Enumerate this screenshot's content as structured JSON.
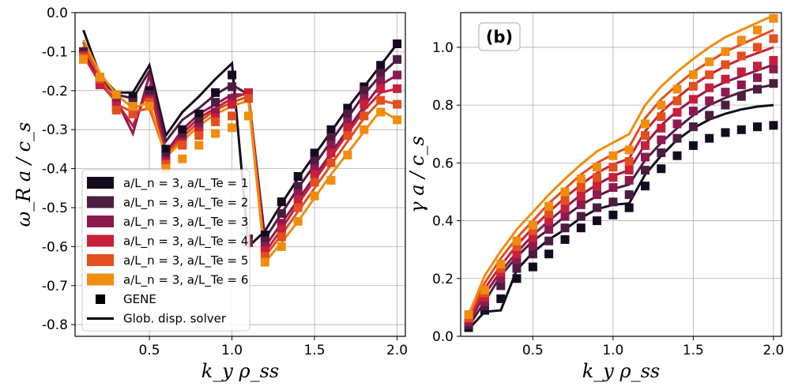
{
  "chart_data": [
    {
      "panel": "left",
      "type": "line",
      "ylabel": "ω_R a / c_s",
      "xlabel": "k_y ρ_ss",
      "xlim": [
        0.05,
        2.05
      ],
      "ylim": [
        -0.83,
        0.0
      ],
      "xticks": [
        "0.5",
        "1.0",
        "1.5",
        "2.0"
      ],
      "yticks": [
        "0.0",
        "-0.1",
        "-0.2",
        "-0.3",
        "-0.4",
        "-0.5",
        "-0.6",
        "-0.7",
        "-0.8"
      ],
      "grid": true,
      "x": [
        0.1,
        0.2,
        0.3,
        0.4,
        0.5,
        0.6,
        0.7,
        0.8,
        0.9,
        1.0,
        1.1,
        1.2,
        1.3,
        1.4,
        1.5,
        1.6,
        1.7,
        1.8,
        1.9,
        2.0
      ],
      "series": [
        {
          "name": "a/L_n = 3, a/L_Te = 1",
          "color": "#140b1e",
          "gene": [
            -0.105,
            -0.17,
            -0.22,
            -0.215,
            -0.2,
            -0.35,
            -0.3,
            -0.26,
            -0.205,
            -0.16,
            -0.58,
            -0.57,
            -0.485,
            -0.42,
            -0.36,
            -0.3,
            -0.245,
            -0.19,
            -0.135,
            -0.08
          ],
          "solver": [
            -0.045,
            -0.16,
            -0.205,
            -0.205,
            -0.135,
            -0.315,
            -0.255,
            -0.215,
            -0.17,
            -0.13,
            -0.6,
            -0.56,
            -0.49,
            -0.425,
            -0.365,
            -0.305,
            -0.245,
            -0.19,
            -0.135,
            -0.08
          ]
        },
        {
          "name": "a/L_n = 3, a/L_Te = 2",
          "color": "#4d1d3f",
          "gene": [
            -0.1,
            -0.175,
            -0.225,
            -0.23,
            -0.21,
            -0.37,
            -0.32,
            -0.28,
            -0.23,
            -0.19,
            -0.58,
            -0.585,
            -0.515,
            -0.445,
            -0.38,
            -0.32,
            -0.26,
            -0.2,
            -0.155,
            -0.12
          ],
          "solver": [
            -0.075,
            -0.17,
            -0.21,
            -0.22,
            -0.15,
            -0.33,
            -0.275,
            -0.245,
            -0.21,
            -0.185,
            -0.21,
            -0.58,
            -0.515,
            -0.45,
            -0.39,
            -0.33,
            -0.27,
            -0.21,
            -0.16,
            -0.12
          ]
        },
        {
          "name": "a/L_n = 3, a/L_Te = 3",
          "color": "#8c1a4f",
          "gene": [
            -0.11,
            -0.18,
            -0.23,
            -0.245,
            -0.22,
            -0.38,
            -0.33,
            -0.295,
            -0.255,
            -0.22,
            -0.59,
            -0.6,
            -0.54,
            -0.465,
            -0.4,
            -0.34,
            -0.28,
            -0.22,
            -0.175,
            -0.16
          ],
          "solver": [
            -0.1,
            -0.175,
            -0.225,
            -0.31,
            -0.16,
            -0.36,
            -0.3,
            -0.26,
            -0.235,
            -0.21,
            -0.21,
            -0.6,
            -0.54,
            -0.48,
            -0.42,
            -0.36,
            -0.3,
            -0.24,
            -0.185,
            -0.16
          ]
        },
        {
          "name": "a/L_n = 3, a/L_Te = 4",
          "color": "#c81f3a",
          "gene": [
            -0.11,
            -0.185,
            -0.24,
            -0.255,
            -0.225,
            -0.385,
            -0.335,
            -0.305,
            -0.27,
            -0.235,
            -0.205,
            -0.61,
            -0.555,
            -0.48,
            -0.415,
            -0.36,
            -0.295,
            -0.235,
            -0.195,
            -0.195
          ],
          "solver": [
            -0.11,
            -0.18,
            -0.23,
            -0.29,
            -0.19,
            -0.365,
            -0.31,
            -0.27,
            -0.245,
            -0.22,
            -0.205,
            -0.615,
            -0.555,
            -0.49,
            -0.43,
            -0.37,
            -0.31,
            -0.25,
            -0.205,
            -0.195
          ]
        },
        {
          "name": "a/L_n = 3, a/L_Te = 5",
          "color": "#e34f1e",
          "gene": [
            -0.115,
            -0.17,
            -0.25,
            -0.26,
            -0.23,
            -0.39,
            -0.34,
            -0.315,
            -0.28,
            -0.265,
            -0.22,
            -0.625,
            -0.575,
            -0.5,
            -0.435,
            -0.385,
            -0.315,
            -0.265,
            -0.225,
            -0.235
          ],
          "solver": [
            -0.085,
            -0.165,
            -0.235,
            -0.255,
            -0.245,
            -0.365,
            -0.32,
            -0.28,
            -0.25,
            -0.23,
            -0.215,
            -0.625,
            -0.57,
            -0.51,
            -0.45,
            -0.39,
            -0.33,
            -0.27,
            -0.225,
            -0.235
          ]
        },
        {
          "name": "a/L_n = 3, a/L_Te = 6",
          "color": "#f18d0e",
          "gene": [
            -0.12,
            -0.165,
            -0.21,
            -0.24,
            -0.24,
            -0.4,
            -0.375,
            -0.34,
            -0.31,
            -0.295,
            -0.265,
            -0.64,
            -0.6,
            -0.535,
            -0.47,
            -0.43,
            -0.365,
            -0.3,
            -0.255,
            -0.275
          ],
          "solver": [
            -0.07,
            -0.155,
            -0.21,
            -0.245,
            -0.23,
            -0.37,
            -0.33,
            -0.29,
            -0.26,
            -0.24,
            -0.225,
            -0.64,
            -0.59,
            -0.535,
            -0.475,
            -0.415,
            -0.36,
            -0.305,
            -0.25,
            -0.275
          ]
        }
      ],
      "legend": {
        "placement": "lower-left",
        "entries": [
          "a/L_n = 3, a/L_Te = 1",
          "a/L_n = 3, a/L_Te = 2",
          "a/L_n = 3, a/L_Te = 3",
          "a/L_n = 3, a/L_Te = 4",
          "a/L_n = 3, a/L_Te = 5",
          "a/L_n = 3, a/L_Te = 6",
          "GENE",
          "Glob. disp. solver"
        ]
      }
    },
    {
      "panel": "right",
      "type": "line",
      "ylabel": "γ a / c_s",
      "xlabel": "k_y ρ_ss",
      "xlim": [
        0.05,
        2.05
      ],
      "ylim": [
        0.0,
        1.12
      ],
      "xticks": [
        "0.5",
        "1.0",
        "1.5",
        "2.0"
      ],
      "yticks": [
        "0.0",
        "0.2",
        "0.4",
        "0.6",
        "0.8",
        "1.0"
      ],
      "grid": true,
      "tag": "(b)",
      "x": [
        0.1,
        0.2,
        0.3,
        0.4,
        0.5,
        0.6,
        0.7,
        0.8,
        0.9,
        1.0,
        1.1,
        1.2,
        1.3,
        1.4,
        1.5,
        1.6,
        1.7,
        1.8,
        1.9,
        2.0
      ],
      "series": [
        {
          "name": "a/L_n = 3, a/L_Te = 1",
          "color": "#140b1e",
          "gene": [
            0.03,
            0.09,
            0.13,
            0.2,
            0.24,
            0.285,
            0.335,
            0.375,
            0.4,
            0.42,
            0.445,
            0.52,
            0.58,
            0.625,
            0.66,
            0.685,
            0.705,
            0.715,
            0.725,
            0.73
          ],
          "solver": [
            0.025,
            0.085,
            0.09,
            0.23,
            0.29,
            0.335,
            0.37,
            0.41,
            0.44,
            0.455,
            0.46,
            0.56,
            0.625,
            0.68,
            0.72,
            0.75,
            0.77,
            0.785,
            0.795,
            0.8
          ]
        },
        {
          "name": "a/L_n = 3, a/L_Te = 2",
          "color": "#4d1d3f",
          "gene": [
            0.04,
            0.105,
            0.175,
            0.235,
            0.285,
            0.33,
            0.375,
            0.415,
            0.445,
            0.465,
            0.49,
            0.575,
            0.635,
            0.685,
            0.725,
            0.765,
            0.8,
            0.83,
            0.855,
            0.875
          ],
          "solver": [
            0.035,
            0.12,
            0.21,
            0.275,
            0.33,
            0.37,
            0.415,
            0.455,
            0.485,
            0.51,
            0.525,
            0.61,
            0.67,
            0.72,
            0.765,
            0.8,
            0.825,
            0.845,
            0.86,
            0.87
          ]
        },
        {
          "name": "a/L_n = 3, a/L_Te = 3",
          "color": "#8c1a4f",
          "gene": [
            0.05,
            0.12,
            0.2,
            0.265,
            0.315,
            0.37,
            0.415,
            0.455,
            0.49,
            0.515,
            0.54,
            0.62,
            0.68,
            0.735,
            0.78,
            0.815,
            0.845,
            0.87,
            0.895,
            0.925
          ],
          "solver": [
            0.045,
            0.145,
            0.225,
            0.29,
            0.35,
            0.4,
            0.445,
            0.49,
            0.525,
            0.555,
            0.575,
            0.665,
            0.73,
            0.78,
            0.82,
            0.855,
            0.88,
            0.9,
            0.92,
            0.94
          ]
        },
        {
          "name": "a/L_n = 3, a/L_Te = 4",
          "color": "#c81f3a",
          "gene": [
            0.06,
            0.135,
            0.22,
            0.285,
            0.34,
            0.4,
            0.445,
            0.485,
            0.52,
            0.55,
            0.575,
            0.66,
            0.72,
            0.775,
            0.82,
            0.86,
            0.89,
            0.915,
            0.935,
            0.955
          ],
          "solver": [
            0.055,
            0.165,
            0.245,
            0.315,
            0.375,
            0.43,
            0.48,
            0.525,
            0.565,
            0.595,
            0.615,
            0.71,
            0.775,
            0.825,
            0.87,
            0.905,
            0.935,
            0.96,
            0.98,
            1.0
          ]
        },
        {
          "name": "a/L_n = 3, a/L_Te = 5",
          "color": "#e34f1e",
          "gene": [
            0.065,
            0.15,
            0.235,
            0.31,
            0.365,
            0.425,
            0.47,
            0.515,
            0.55,
            0.585,
            0.605,
            0.695,
            0.76,
            0.815,
            0.865,
            0.905,
            0.94,
            0.97,
            1.0,
            1.03
          ],
          "solver": [
            0.065,
            0.185,
            0.27,
            0.34,
            0.4,
            0.46,
            0.51,
            0.56,
            0.6,
            0.63,
            0.655,
            0.755,
            0.82,
            0.87,
            0.915,
            0.95,
            0.985,
            1.01,
            1.035,
            1.06
          ]
        },
        {
          "name": "a/L_n = 3, a/L_Te = 6",
          "color": "#f18d0e",
          "gene": [
            0.075,
            0.16,
            0.25,
            0.33,
            0.385,
            0.45,
            0.5,
            0.545,
            0.585,
            0.625,
            0.645,
            0.735,
            0.8,
            0.855,
            0.905,
            0.95,
            0.985,
            1.025,
            1.06,
            1.1
          ],
          "solver": [
            0.075,
            0.21,
            0.295,
            0.37,
            0.43,
            0.49,
            0.545,
            0.595,
            0.64,
            0.67,
            0.7,
            0.8,
            0.865,
            0.915,
            0.96,
            1.0,
            1.035,
            1.06,
            1.085,
            1.11
          ]
        }
      ]
    }
  ]
}
